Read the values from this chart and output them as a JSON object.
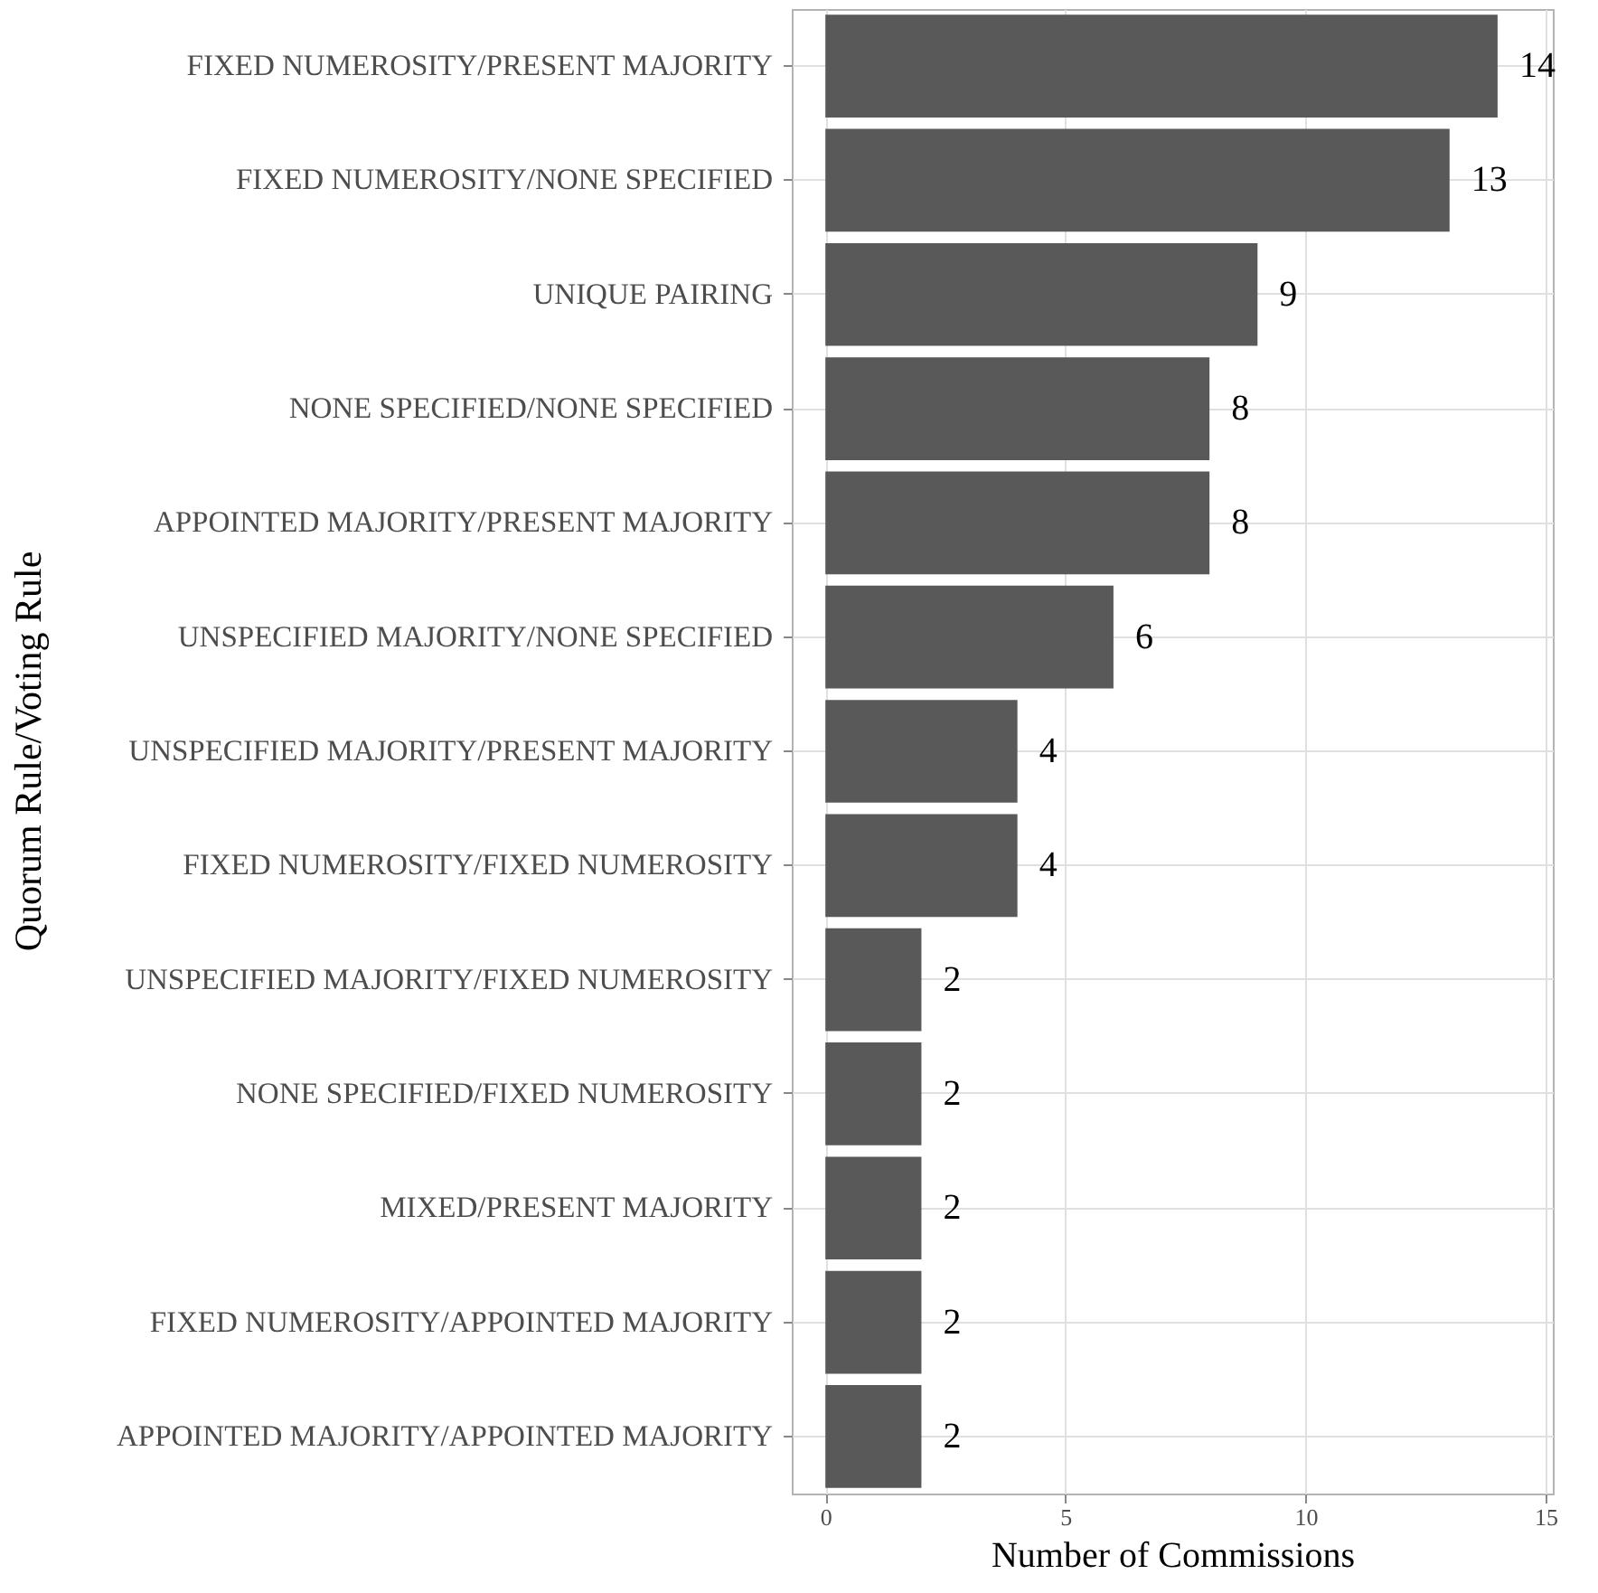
{
  "chart_data": {
    "type": "bar",
    "orientation": "horizontal",
    "xlabel": "Number of Commissions",
    "ylabel": "Quorum Rule/Voting Rule",
    "categories": [
      "FIXED NUMEROSITY/PRESENT MAJORITY",
      "FIXED NUMEROSITY/NONE SPECIFIED",
      "UNIQUE PAIRING",
      "NONE SPECIFIED/NONE SPECIFIED",
      "APPOINTED MAJORITY/PRESENT MAJORITY",
      "UNSPECIFIED MAJORITY/NONE SPECIFIED",
      "UNSPECIFIED MAJORITY/PRESENT MAJORITY",
      "FIXED NUMEROSITY/FIXED NUMEROSITY",
      "UNSPECIFIED MAJORITY/FIXED NUMEROSITY",
      "NONE SPECIFIED/FIXED NUMEROSITY",
      "MIXED/PRESENT MAJORITY",
      "FIXED NUMEROSITY/APPOINTED MAJORITY",
      "APPOINTED MAJORITY/APPOINTED MAJORITY"
    ],
    "values": [
      14,
      13,
      9,
      8,
      8,
      6,
      4,
      4,
      2,
      2,
      2,
      2,
      2
    ],
    "color": "#595959",
    "xlim": [
      -0.7,
      15.15
    ],
    "xticks": [
      0,
      5,
      10,
      15
    ],
    "grid": true,
    "data_labels": true
  }
}
